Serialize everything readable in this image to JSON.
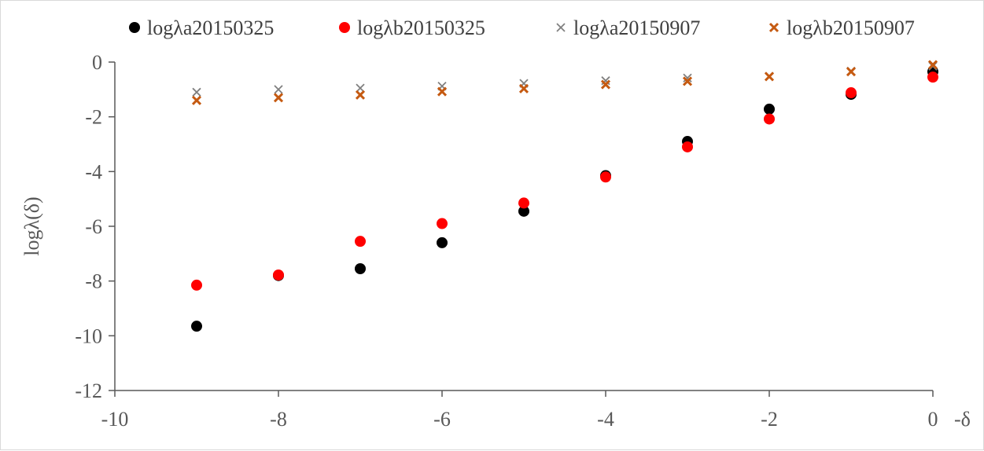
{
  "chart_data": {
    "type": "scatter",
    "xlabel": "-δ",
    "ylabel": "logλ(δ)",
    "xlim": [
      -10,
      0
    ],
    "ylim": [
      -12,
      0
    ],
    "x_ticks": [
      "-10",
      "-8",
      "-6",
      "-4",
      "-2",
      "0"
    ],
    "y_ticks": [
      "0",
      "-2",
      "-4",
      "-6",
      "-8",
      "-10",
      "-12"
    ],
    "grid": false,
    "legend_position": "top",
    "series": [
      {
        "name": "logλa20150325",
        "marker": "circle",
        "color": "#000000",
        "x": [
          -9,
          -8,
          -7,
          -6,
          -5,
          -4,
          -3,
          -2,
          -1,
          0
        ],
        "y": [
          -9.65,
          -7.8,
          -7.55,
          -6.6,
          -5.45,
          -4.15,
          -2.9,
          -1.72,
          -1.18,
          -0.35
        ]
      },
      {
        "name": "logλb20150325",
        "marker": "circle",
        "color": "#ff0000",
        "x": [
          -9,
          -8,
          -7,
          -6,
          -5,
          -4,
          -3,
          -2,
          -1,
          0
        ],
        "y": [
          -8.15,
          -7.78,
          -6.55,
          -5.9,
          -5.15,
          -4.2,
          -3.1,
          -2.08,
          -1.12,
          -0.55
        ]
      },
      {
        "name": "logλa20150907",
        "marker": "x",
        "color": "#7f7f7f",
        "x": [
          -9,
          -8,
          -7,
          -6,
          -5,
          -4,
          -3,
          -2,
          -1,
          0
        ],
        "y": [
          -1.1,
          -1.0,
          -0.95,
          -0.88,
          -0.78,
          -0.68,
          -0.58,
          -0.52,
          -0.33,
          -0.15
        ]
      },
      {
        "name": "logλb20150907",
        "marker": "x",
        "color": "#c55a11",
        "x": [
          -9,
          -8,
          -7,
          -6,
          -5,
          -4,
          -3,
          -2,
          -1,
          0
        ],
        "y": [
          -1.4,
          -1.3,
          -1.2,
          -1.08,
          -0.97,
          -0.82,
          -0.7,
          -0.53,
          -0.35,
          -0.1
        ]
      }
    ]
  }
}
